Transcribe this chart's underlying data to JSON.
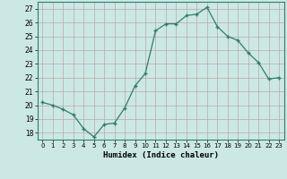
{
  "x": [
    0,
    1,
    2,
    3,
    4,
    5,
    6,
    7,
    8,
    9,
    10,
    11,
    12,
    13,
    14,
    15,
    16,
    17,
    18,
    19,
    20,
    21,
    22,
    23
  ],
  "y": [
    20.2,
    20.0,
    19.7,
    19.3,
    18.3,
    17.7,
    18.6,
    18.7,
    19.8,
    21.4,
    22.3,
    25.4,
    25.9,
    25.9,
    26.5,
    26.6,
    27.1,
    25.7,
    25.0,
    24.7,
    23.8,
    23.1,
    21.9,
    22.0
  ],
  "xlabel": "Humidex (Indice chaleur)",
  "ylim": [
    17.5,
    27.5
  ],
  "yticks": [
    18,
    19,
    20,
    21,
    22,
    23,
    24,
    25,
    26,
    27
  ],
  "xtick_labels": [
    "0",
    "1",
    "2",
    "3",
    "4",
    "5",
    "6",
    "7",
    "8",
    "9",
    "10",
    "11",
    "12",
    "13",
    "14",
    "15",
    "16",
    "17",
    "18",
    "19",
    "20",
    "21",
    "22",
    "23"
  ],
  "line_color": "#2e7d6e",
  "bg_color": "#cce8e4",
  "grid_color": "#b8a8a8",
  "tick_color": "#2e7d6e"
}
